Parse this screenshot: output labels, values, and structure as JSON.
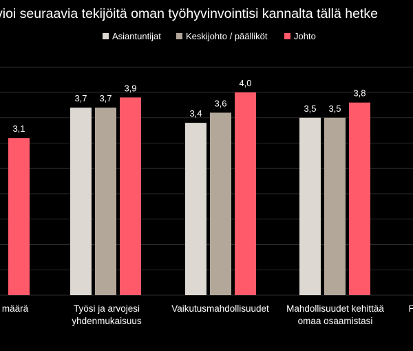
{
  "chart_data": {
    "type": "bar",
    "title": "vioi seuraavia tekijöitä oman työhyvinvointisi kannalta tällä hetke",
    "legend": {
      "placement": "top"
    },
    "series": [
      {
        "name": "Asiantuntijat",
        "color": "#DDD8D1",
        "values": [
          null,
          3.7,
          3.4,
          3.5,
          null
        ]
      },
      {
        "name": "Keskijohto / päälliköt",
        "color": "#B3A79A",
        "values": [
          null,
          3.7,
          3.6,
          3.5,
          null
        ]
      },
      {
        "name": "Johto",
        "color": "#FF5A6A",
        "values": [
          3.1,
          3.9,
          4.0,
          3.8,
          null
        ]
      }
    ],
    "categories": [
      "määrä",
      "Työsi ja arvojesi yhdenmukaisuus",
      "Vaikutusmahdollisuudet",
      "Mahdollisuudet kehittää omaa osaamistasi",
      "P"
    ],
    "category_lines": [
      [
        "määrä"
      ],
      [
        "Työsi ja arvojesi",
        "yhdenmukaisuus"
      ],
      [
        "Vaikutusmahdollisuudet"
      ],
      [
        "Mahdollisuudet kehittää",
        "omaa osaamistasi"
      ],
      [
        "P"
      ]
    ],
    "value_labels": {
      "Asiantuntijat": [
        "",
        "3,7",
        "3,4",
        "3,5",
        ""
      ],
      "Keskijohto / päälliköt": [
        "",
        "3,7",
        "3,6",
        "3,5",
        ""
      ],
      "Johto": [
        "3,1",
        "3,9",
        "4,0",
        "3,8",
        ""
      ]
    },
    "ylim": [
      0,
      4.5
    ],
    "grid": true,
    "gridline_color": "#2b2b2b"
  }
}
